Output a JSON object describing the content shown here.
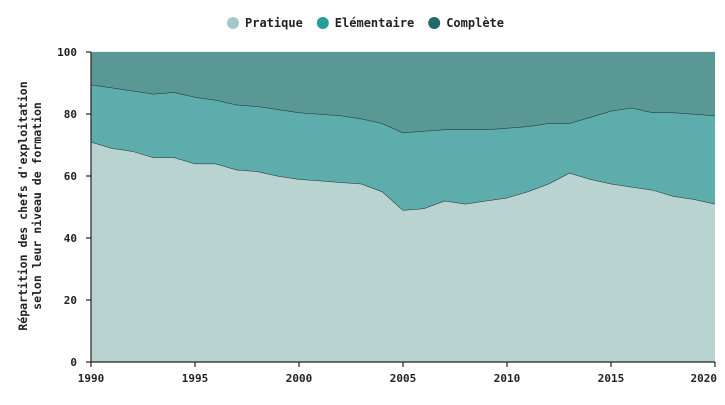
{
  "chart_data": {
    "type": "area",
    "stacked": true,
    "ylabel_lines": [
      "Répartition des chefs d'exploitation",
      "selon leur niveau de formation"
    ],
    "xlabel": "",
    "xlim": [
      1990,
      2020
    ],
    "ylim": [
      0,
      100
    ],
    "x_ticks": [
      1990,
      1995,
      2000,
      2005,
      2010,
      2015,
      2020
    ],
    "x_tick_labels": [
      "1990",
      "1995",
      "2000",
      "2005",
      "2010",
      "2015",
      "2020"
    ],
    "y_ticks": [
      0,
      20,
      40,
      60,
      80,
      100
    ],
    "y_tick_labels": [
      "0",
      "20",
      "40",
      "60",
      "80",
      "100"
    ],
    "grid": true,
    "legend_position": "top-center",
    "x": [
      1990,
      1991,
      1992,
      1993,
      1994,
      1995,
      1996,
      1997,
      1998,
      1999,
      2000,
      2001,
      2002,
      2003,
      2004,
      2005,
      2006,
      2007,
      2008,
      2009,
      2010,
      2011,
      2012,
      2013,
      2014,
      2015,
      2016,
      2017,
      2018,
      2019,
      2020
    ],
    "series": [
      {
        "name": "Pratique",
        "color": "#b9d3d1",
        "legend_color": "#a3c8c5",
        "values": [
          71,
          69,
          68,
          66,
          66,
          64,
          64,
          62,
          61.5,
          60,
          59,
          58.5,
          58,
          57.5,
          55,
          49,
          49.5,
          52,
          51,
          52,
          53,
          55,
          57.5,
          61,
          59,
          57.5,
          56.5,
          55.5,
          53.5,
          52.5,
          51
        ]
      },
      {
        "name": "Elémentaire",
        "color": "#5cadab",
        "legend_color": "#2a9d98",
        "values": [
          18.5,
          19.5,
          19.5,
          20.5,
          21,
          21.5,
          20.5,
          21,
          21,
          21.5,
          21.5,
          21.5,
          21.5,
          21,
          22,
          25,
          25,
          23,
          24,
          23,
          22.5,
          21,
          19.5,
          16,
          20,
          23.5,
          25.5,
          25,
          27,
          27.5,
          28.5
        ]
      },
      {
        "name": "Complète",
        "color": "#5a9895",
        "legend_color": "#1f6b67",
        "values": [
          10.5,
          11.5,
          12.5,
          13.5,
          13,
          14.5,
          15.5,
          17,
          17.5,
          18.5,
          19.5,
          20,
          20.5,
          21.5,
          23,
          26,
          25.5,
          25,
          25,
          25,
          24.5,
          24,
          23,
          23,
          21,
          19,
          18,
          19.5,
          19.5,
          20,
          20.5
        ]
      }
    ]
  }
}
